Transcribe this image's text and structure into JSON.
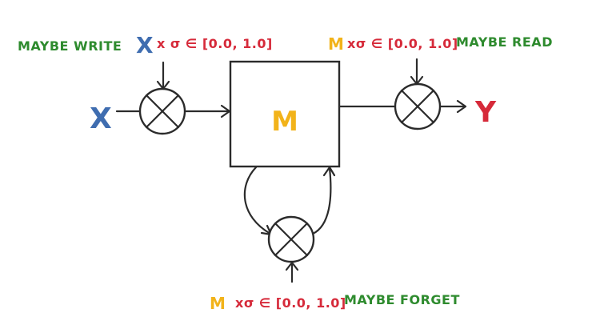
{
  "colors": {
    "ink": "#2b2b2b",
    "green": "#2e8b2e",
    "blue": "#3f6db0",
    "red": "#d62a3a",
    "yellow": "#f2b31a"
  },
  "labels": {
    "input_x": "X",
    "output_y": "Y",
    "memory": "M",
    "write": {
      "caption": "MAYBE WRITE",
      "x": "X",
      "times_sigma": "x σ ∈ [0.0, 1.0]"
    },
    "read": {
      "m": "M",
      "times_sigma": "xσ ∈ [0.0, 1.0]",
      "caption": "MAYBE READ"
    },
    "forget": {
      "m": "M",
      "times_sigma": "xσ ∈ [0.0, 1.0]",
      "caption": "MAYBE FORGET"
    }
  },
  "icons": {
    "write_gate": "multiply-gate-icon",
    "read_gate": "multiply-gate-icon",
    "forget_gate": "multiply-gate-icon"
  }
}
